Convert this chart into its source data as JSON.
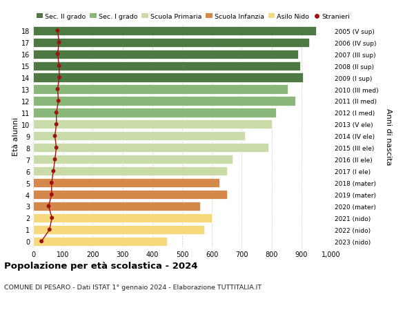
{
  "ages": [
    0,
    1,
    2,
    3,
    4,
    5,
    6,
    7,
    8,
    9,
    10,
    11,
    12,
    13,
    14,
    15,
    16,
    17,
    18
  ],
  "years": [
    "2023 (nido)",
    "2022 (nido)",
    "2021 (nido)",
    "2020 (mater)",
    "2019 (mater)",
    "2018 (mater)",
    "2017 (I ele)",
    "2016 (II ele)",
    "2015 (III ele)",
    "2014 (IV ele)",
    "2013 (V ele)",
    "2012 (I med)",
    "2011 (II med)",
    "2010 (III med)",
    "2009 (I sup)",
    "2008 (II sup)",
    "2007 (III sup)",
    "2006 (IV sup)",
    "2005 (V sup)"
  ],
  "values": [
    450,
    575,
    600,
    560,
    650,
    625,
    650,
    670,
    790,
    710,
    800,
    815,
    880,
    855,
    905,
    895,
    890,
    925,
    950
  ],
  "stranieri": [
    28,
    55,
    63,
    52,
    62,
    62,
    68,
    73,
    78,
    73,
    78,
    78,
    85,
    82,
    88,
    87,
    82,
    87,
    82
  ],
  "bar_colors": [
    "#f5d97a",
    "#f5d97a",
    "#f5d97a",
    "#d4894a",
    "#d4894a",
    "#d4894a",
    "#c8dba8",
    "#c8dba8",
    "#c8dba8",
    "#c8dba8",
    "#c8dba8",
    "#8ab87a",
    "#8ab87a",
    "#8ab87a",
    "#4d7a42",
    "#4d7a42",
    "#4d7a42",
    "#4d7a42",
    "#4d7a42"
  ],
  "legend_labels": [
    "Sec. II grado",
    "Sec. I grado",
    "Scuola Primaria",
    "Scuola Infanzia",
    "Asilo Nido",
    "Stranieri"
  ],
  "legend_colors": [
    "#4d7a42",
    "#8ab87a",
    "#c8dba8",
    "#d4894a",
    "#f5d97a",
    "#a01010"
  ],
  "ylabel_left": "Età alunni",
  "ylabel_right": "Anni di nascita",
  "title": "Popolazione per età scolastica - 2024",
  "subtitle": "COMUNE DI PESARO - Dati ISTAT 1° gennaio 2024 - Elaborazione TUTTITALIA.IT",
  "xlim": [
    0,
    1000
  ],
  "xtick_values": [
    0,
    100,
    200,
    300,
    400,
    500,
    600,
    700,
    800,
    900,
    1000
  ],
  "xtick_labels": [
    "0",
    "100",
    "200",
    "300",
    "400",
    "500",
    "600",
    "700",
    "800",
    "900",
    "1,000"
  ],
  "stranieri_color": "#a01010",
  "stranieri_line_color": "#a01010",
  "background_color": "#ffffff",
  "grid_color": "#cccccc"
}
